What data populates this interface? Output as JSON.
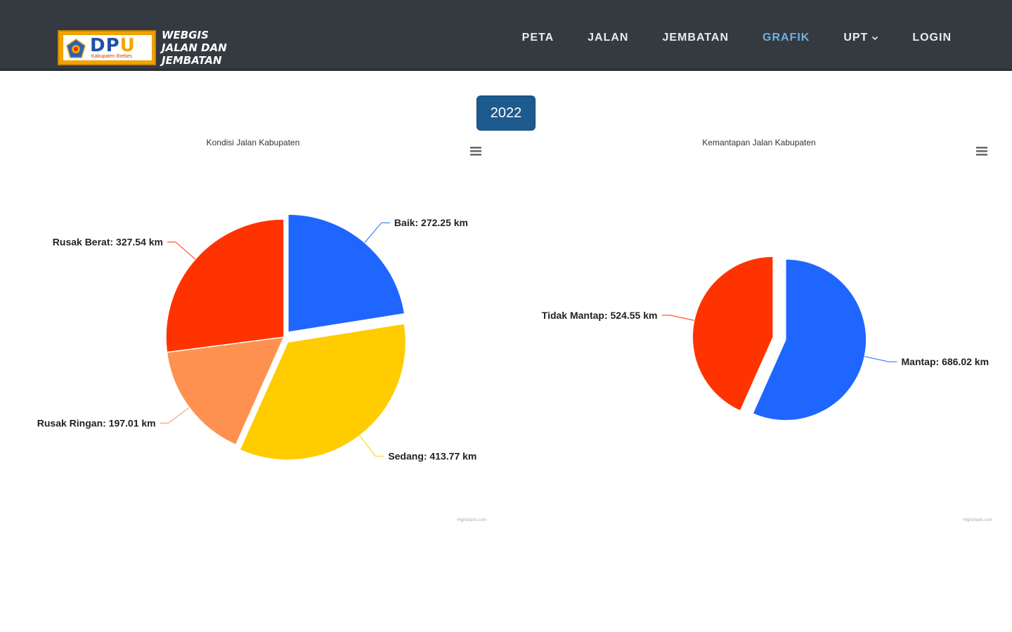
{
  "brand": {
    "logo_text_dp": "DP",
    "logo_text_u": "U",
    "logo_subtitle": "Kabupaten Brebes",
    "title_line1": "WEBGIS",
    "title_line2": "JALAN DAN",
    "title_line3": "JEMBATAN"
  },
  "nav": {
    "items": [
      {
        "label": "PETA"
      },
      {
        "label": "JALAN"
      },
      {
        "label": "JEMBATAN"
      },
      {
        "label": "GRAFIK",
        "active": true
      },
      {
        "label": "UPT"
      },
      {
        "label": "LOGIN"
      }
    ]
  },
  "year_button": "2022",
  "colors": {
    "navbar": "#343a40",
    "active_nav": "#6fb1e0",
    "baik": "#1f66ff",
    "sedang": "#ffcc00",
    "rusak_ringan": "#ff9150",
    "rusak_berat": "#ff3300",
    "mantap": "#1f66ff",
    "tidak_mantap": "#ff3300"
  },
  "chart_data": [
    {
      "type": "pie",
      "title": "Kondisi Jalan Kabupaten",
      "unit": "km",
      "credits": "Highcharts.com",
      "slices": [
        {
          "name": "Baik",
          "value": 272.25,
          "label": "Baik: 272.25 km",
          "color": "#1f66ff",
          "sliced": true
        },
        {
          "name": "Sedang",
          "value": 413.77,
          "label": "Sedang: 413.77 km",
          "color": "#ffcc00",
          "sliced": true
        },
        {
          "name": "Rusak Ringan",
          "value": 197.01,
          "label": "Rusak Ringan: 197.01 km",
          "color": "#ff9150",
          "sliced": false
        },
        {
          "name": "Rusak Berat",
          "value": 327.54,
          "label": "Rusak Berat: 327.54 km",
          "color": "#ff3300",
          "sliced": false
        }
      ]
    },
    {
      "type": "pie",
      "title": "Kemantapan Jalan Kabupaten",
      "unit": "km",
      "credits": "Highcharts.com",
      "slices": [
        {
          "name": "Mantap",
          "value": 686.02,
          "label": "Mantap: 686.02 km",
          "color": "#1f66ff",
          "sliced": true
        },
        {
          "name": "Tidak Mantap",
          "value": 524.55,
          "label": "Tidak Mantap: 524.55 km",
          "color": "#ff3300",
          "sliced": true
        }
      ]
    }
  ]
}
